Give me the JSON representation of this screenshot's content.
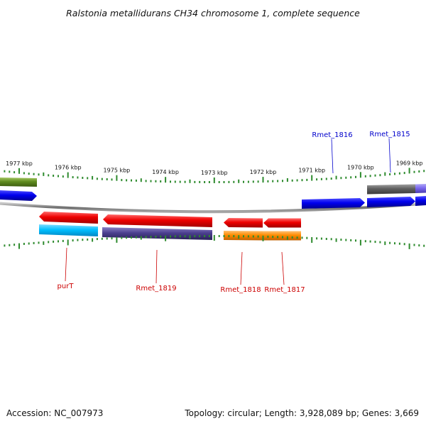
{
  "title": "Ralstonia metallidurans CH34 chromosome 1, complete sequence",
  "accession": "Accession: NC_007973",
  "summary": "Topology: circular; Length: 3,928,089 bp; Genes: 3,669",
  "scale_labels": [
    "1977 kbp",
    "1976 kbp",
    "1975 kbp",
    "1974 kbp",
    "1973 kbp",
    "1972 kbp",
    "1971 kbp",
    "1970 kbp",
    "1969 kbp"
  ],
  "gene_labels_top": [
    "Rmet_1816",
    "Rmet_1815"
  ],
  "gene_labels_bottom": [
    "purT",
    "Rmet_1819",
    "Rmet_1818",
    "Rmet_1817"
  ],
  "colors": {
    "forward_label": "#0000cc",
    "reverse_label": "#cc0000",
    "tick": "#2e8b2e",
    "backbone": "#808080",
    "red": "#ee0000",
    "blue": "#0000ee",
    "cyan": "#00bfff",
    "slate": "#4b3f8f",
    "orange": "#ff8c00",
    "gray": "#606060",
    "olive": "#5f8a1e",
    "lavender": "#7b68ee"
  }
}
